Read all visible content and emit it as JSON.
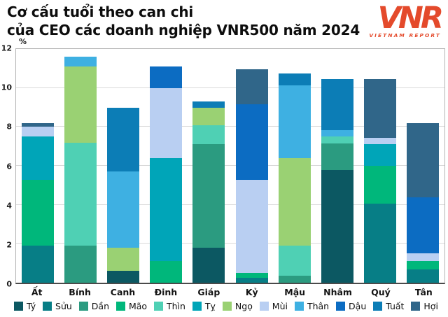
{
  "header": {
    "title_line1": "Cơ cấu tuổi theo can chi",
    "title_line2": "của CEO các doanh nghiệp VNR500 năm 2024"
  },
  "logo": {
    "mark": "VNR",
    "caption": "VIETNAM REPORT",
    "color": "#e44a2b"
  },
  "chart_data": {
    "type": "bar",
    "stacked": true,
    "title": "Cơ cấu tuổi theo can chi của CEO các doanh nghiệp VNR500 năm 2024",
    "xlabel": "",
    "ylabel": "%",
    "ylim": [
      0,
      12
    ],
    "yticks": [
      0,
      2,
      4,
      6,
      8,
      10,
      12
    ],
    "grid": true,
    "legend_position": "bottom",
    "categories": [
      "Ất",
      "Bính",
      "Canh",
      "Đinh",
      "Giáp",
      "Kỷ",
      "Mậu",
      "Nhâm",
      "Quý",
      "Tân"
    ],
    "totals": [
      8.2,
      11.6,
      9.0,
      11.1,
      9.3,
      10.95,
      10.75,
      10.45,
      10.45,
      8.2
    ],
    "series": [
      {
        "name": "Tý",
        "color": "#0c5862",
        "values": [
          0,
          0,
          0.6,
          0,
          1.8,
          0,
          0,
          5.8,
          0,
          0
        ]
      },
      {
        "name": "Sửu",
        "color": "#077e86",
        "values": [
          1.9,
          0,
          0,
          0,
          0,
          0.25,
          0,
          0,
          4.05,
          0.7
        ]
      },
      {
        "name": "Dần",
        "color": "#2b9b80",
        "values": [
          0,
          1.9,
          0,
          0,
          5.3,
          0,
          0.35,
          1.35,
          0,
          0
        ]
      },
      {
        "name": "Mão",
        "color": "#00b77b",
        "values": [
          3.4,
          0,
          0,
          1.1,
          0,
          0.25,
          0,
          0,
          1.95,
          0.4
        ]
      },
      {
        "name": "Thìn",
        "color": "#4fd0b4",
        "values": [
          0,
          5.3,
          0,
          0,
          1.0,
          0,
          1.55,
          0.35,
          0,
          0
        ]
      },
      {
        "name": "Tỵ",
        "color": "#00a5b8",
        "values": [
          2.2,
          0,
          0,
          5.3,
          0,
          0,
          0,
          0,
          1.1,
          0
        ]
      },
      {
        "name": "Ngọ",
        "color": "#9ad173",
        "values": [
          0,
          3.9,
          1.2,
          0,
          0.9,
          0,
          4.5,
          0,
          0,
          0
        ]
      },
      {
        "name": "Mùi",
        "color": "#b9cff2",
        "values": [
          0.5,
          0,
          0,
          3.6,
          0,
          4.8,
          0,
          0,
          0.35,
          0.4
        ]
      },
      {
        "name": "Thân",
        "color": "#3eb0e2",
        "values": [
          0,
          0.5,
          3.9,
          0,
          0,
          0,
          3.75,
          0.35,
          0,
          0
        ]
      },
      {
        "name": "Dậu",
        "color": "#0c6cc2",
        "values": [
          0,
          0,
          0,
          1.1,
          0,
          3.85,
          0,
          0,
          0,
          2.9
        ]
      },
      {
        "name": "Tuất",
        "color": "#0c7db6",
        "values": [
          0,
          0,
          3.3,
          0,
          0.3,
          0,
          0.6,
          2.6,
          0,
          0
        ]
      },
      {
        "name": "Hợi",
        "color": "#306689",
        "values": [
          0.2,
          0,
          0,
          0,
          0,
          1.8,
          0,
          0,
          3.0,
          3.8
        ]
      }
    ]
  }
}
